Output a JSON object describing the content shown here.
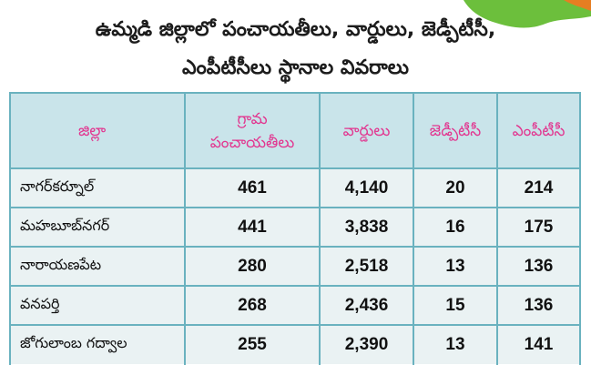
{
  "title": {
    "line1": "ఉమ్మడి జిల్లాలో పంచాయతీలు, వార్డులు, జెడ్పీటీసీ,",
    "line2": "ఎంపీటీసీలు స్థానాల వివరాలు"
  },
  "colors": {
    "header_bg": "#c9e4ea",
    "header_text": "#e2358f",
    "row_bg": "#eaf2f3",
    "border": "#6ab2bf",
    "map_green": "#6cbf3c",
    "map_orange": "#e67e22"
  },
  "table": {
    "headers": {
      "district": "జిల్లా",
      "gp_line1": "గ్రామ",
      "gp_line2": "పంచాయతీలు",
      "wards": "వార్డులు",
      "zptc": "జెడ్పీటీసీ",
      "mptc": "ఎంపీటీసీ"
    },
    "rows": [
      {
        "district": "నాగర్‌కర్నూల్",
        "gp": "461",
        "wards": "4,140",
        "zptc": "20",
        "mptc": "214"
      },
      {
        "district": "మహబూబ్‌నగర్",
        "gp": "441",
        "wards": "3,838",
        "zptc": "16",
        "mptc": "175"
      },
      {
        "district": "నారాయణపేట",
        "gp": "280",
        "wards": "2,518",
        "zptc": "13",
        "mptc": "136"
      },
      {
        "district": "వనపర్తి",
        "gp": "268",
        "wards": "2,436",
        "zptc": "15",
        "mptc": "136"
      },
      {
        "district": "జోగులాంబ గద్వాల",
        "gp": "255",
        "wards": "2,390",
        "zptc": "13",
        "mptc": "141"
      }
    ]
  }
}
